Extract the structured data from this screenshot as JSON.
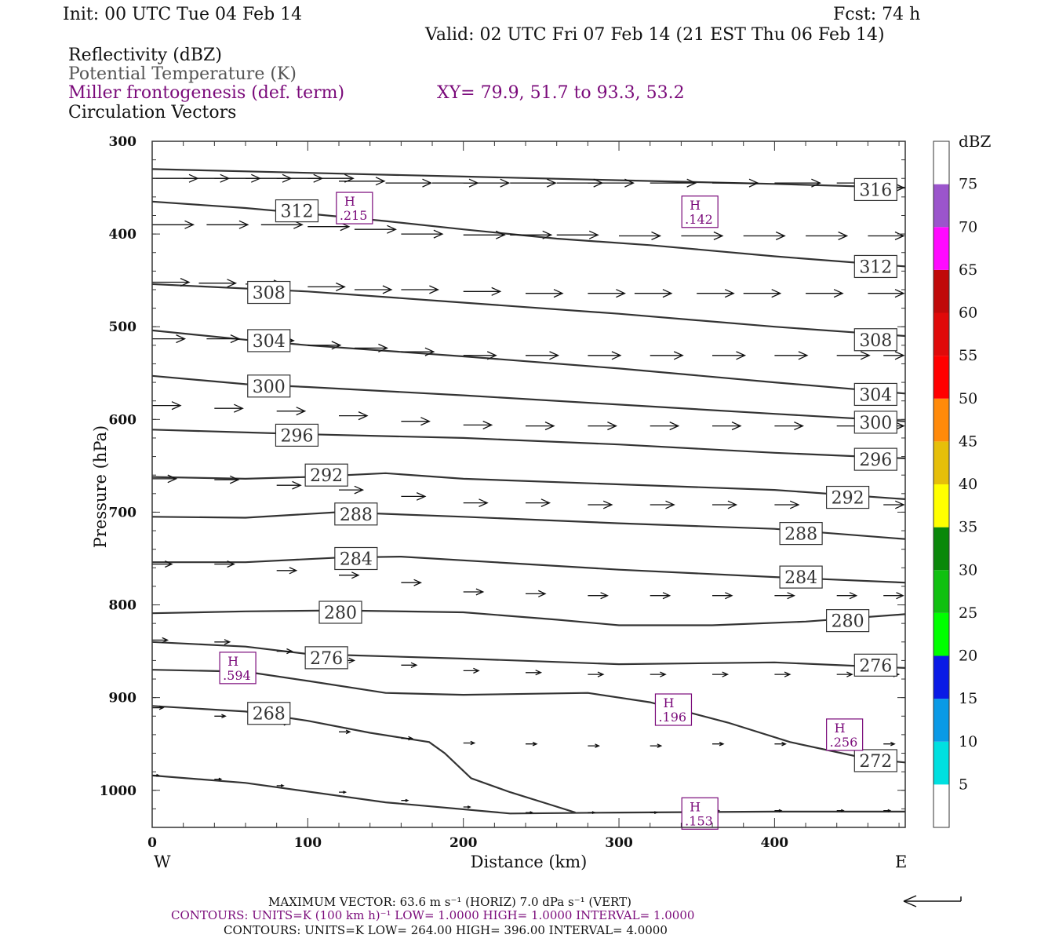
{
  "header": {
    "init": "Init: 00 UTC Tue 04 Feb 14",
    "fcst": "Fcst:   74 h",
    "valid": "Valid: 02 UTC Fri 07 Feb 14 (21 EST Thu 06 Feb 14)",
    "fields": [
      {
        "text": "Reflectivity (dBZ)",
        "color": "#111111"
      },
      {
        "text": "Potential Temperature (K)",
        "color": "#555555"
      },
      {
        "text": "Miller frontogenesis (def. term)",
        "color": "#7a0a7a"
      },
      {
        "text": "Circulation Vectors",
        "color": "#111111"
      }
    ],
    "xy": "XY=  79.9, 51.7 to  93.3, 53.2"
  },
  "colorbar": {
    "unit": "dBZ",
    "levels": [
      "5",
      "10",
      "15",
      "20",
      "25",
      "30",
      "35",
      "40",
      "45",
      "50",
      "55",
      "60",
      "65",
      "70",
      "75"
    ],
    "colors": [
      "#ffffff",
      "#00e0e0",
      "#0a9ae6",
      "#0a1ae6",
      "#00ff00",
      "#10c010",
      "#0a880a",
      "#ffff00",
      "#e6bf0a",
      "#ff8a0a",
      "#ff0000",
      "#e00a0a",
      "#c00a0a",
      "#ff0aff",
      "#9b55cc",
      "#ffffff"
    ]
  },
  "footer": {
    "vector": "MAXIMUM VECTOR:  63.6 m s⁻¹ (HORIZ)         7.0 dPa s⁻¹ (VERT)",
    "contours_fronto": "CONTOURS:  UNITS=K (100 km h)⁻¹  LOW=   1.0000       HIGH=   1.0000       INTERVAL=    1.0000",
    "contours_theta": "CONTOURS:  UNITS=K  LOW=   264.00        HIGH=   396.00        INTERVAL=    4.0000"
  },
  "chart_data": {
    "type": "cross-section",
    "xlabel": "Distance (km)",
    "ylabel": "Pressure (hPa)",
    "xlim": [
      0,
      484
    ],
    "ylim": [
      1040,
      300
    ],
    "xticks": [
      "0",
      "100",
      "200",
      "300",
      "400"
    ],
    "yticks": [
      "300",
      "400",
      "500",
      "600",
      "700",
      "800",
      "900",
      "1000"
    ],
    "x_left_label": "W",
    "x_right_label": "E",
    "theta_contours": [
      {
        "level": "316",
        "points": [
          [
            0,
            330
          ],
          [
            100,
            334
          ],
          [
            200,
            338
          ],
          [
            300,
            342
          ],
          [
            400,
            346
          ],
          [
            484,
            350
          ]
        ],
        "labels": [
          [
            465,
            352
          ]
        ]
      },
      {
        "level": "312",
        "points": [
          [
            0,
            365
          ],
          [
            60,
            372
          ],
          [
            100,
            378
          ],
          [
            150,
            386
          ],
          [
            200,
            395
          ],
          [
            260,
            405
          ],
          [
            320,
            412
          ],
          [
            400,
            424
          ],
          [
            484,
            435
          ]
        ],
        "labels": [
          [
            93,
            375
          ],
          [
            465,
            435
          ]
        ]
      },
      {
        "level": "308",
        "points": [
          [
            0,
            454
          ],
          [
            100,
            462
          ],
          [
            200,
            474
          ],
          [
            300,
            486
          ],
          [
            400,
            500
          ],
          [
            484,
            510
          ]
        ],
        "labels": [
          [
            75,
            463
          ],
          [
            465,
            514
          ]
        ]
      },
      {
        "level": "304",
        "points": [
          [
            0,
            504
          ],
          [
            60,
            514
          ],
          [
            100,
            520
          ],
          [
            200,
            532
          ],
          [
            300,
            545
          ],
          [
            400,
            560
          ],
          [
            484,
            572
          ]
        ],
        "labels": [
          [
            75,
            515
          ],
          [
            465,
            573
          ]
        ]
      },
      {
        "level": "300",
        "points": [
          [
            0,
            553
          ],
          [
            60,
            562
          ],
          [
            100,
            565
          ],
          [
            200,
            574
          ],
          [
            300,
            584
          ],
          [
            400,
            594
          ],
          [
            484,
            602
          ]
        ],
        "labels": [
          [
            75,
            564
          ],
          [
            465,
            603
          ]
        ]
      },
      {
        "level": "296",
        "points": [
          [
            0,
            611
          ],
          [
            100,
            616
          ],
          [
            200,
            620
          ],
          [
            300,
            627
          ],
          [
            400,
            636
          ],
          [
            484,
            642
          ]
        ],
        "labels": [
          [
            93,
            617
          ],
          [
            465,
            643
          ]
        ]
      },
      {
        "level": "292",
        "points": [
          [
            0,
            662
          ],
          [
            60,
            664
          ],
          [
            100,
            662
          ],
          [
            150,
            658
          ],
          [
            200,
            664
          ],
          [
            300,
            670
          ],
          [
            400,
            676
          ],
          [
            484,
            686
          ]
        ],
        "labels": [
          [
            112,
            660
          ],
          [
            447,
            684
          ]
        ]
      },
      {
        "level": "288",
        "points": [
          [
            0,
            705
          ],
          [
            60,
            706
          ],
          [
            120,
            700
          ],
          [
            200,
            705
          ],
          [
            300,
            712
          ],
          [
            400,
            718
          ],
          [
            484,
            729
          ]
        ],
        "labels": [
          [
            131,
            702
          ],
          [
            417,
            723
          ]
        ]
      },
      {
        "level": "284",
        "points": [
          [
            0,
            754
          ],
          [
            60,
            754
          ],
          [
            120,
            749
          ],
          [
            160,
            748
          ],
          [
            220,
            754
          ],
          [
            300,
            762
          ],
          [
            400,
            770
          ],
          [
            484,
            776
          ]
        ],
        "labels": [
          [
            131,
            750
          ],
          [
            417,
            770
          ]
        ]
      },
      {
        "level": "280",
        "points": [
          [
            0,
            809
          ],
          [
            60,
            807
          ],
          [
            120,
            806
          ],
          [
            200,
            808
          ],
          [
            260,
            816
          ],
          [
            300,
            822
          ],
          [
            360,
            822
          ],
          [
            420,
            818
          ],
          [
            484,
            810
          ]
        ],
        "labels": [
          [
            121,
            808
          ],
          [
            447,
            817
          ]
        ]
      },
      {
        "level": "276",
        "points": [
          [
            0,
            840
          ],
          [
            60,
            845
          ],
          [
            100,
            853
          ],
          [
            200,
            858
          ],
          [
            300,
            864
          ],
          [
            400,
            862
          ],
          [
            484,
            868
          ]
        ],
        "labels": [
          [
            112,
            857
          ],
          [
            465,
            865
          ]
        ]
      },
      {
        "level": "272",
        "points": [
          [
            0,
            870
          ],
          [
            60,
            872
          ],
          [
            100,
            882
          ],
          [
            150,
            895
          ],
          [
            200,
            897
          ],
          [
            280,
            895
          ],
          [
            320,
            905
          ],
          [
            370,
            927
          ],
          [
            410,
            948
          ],
          [
            460,
            966
          ],
          [
            484,
            970
          ]
        ],
        "labels": [
          [
            465,
            968
          ]
        ]
      },
      {
        "level": "268",
        "points": [
          [
            0,
            909
          ],
          [
            60,
            915
          ],
          [
            100,
            925
          ],
          [
            140,
            938
          ],
          [
            178,
            948
          ],
          [
            188,
            960
          ],
          [
            205,
            987
          ],
          [
            230,
            1002
          ],
          [
            255,
            1015
          ],
          [
            272,
            1024
          ]
        ],
        "labels": [
          [
            75,
            917
          ]
        ]
      },
      {
        "level": "264",
        "points": [
          [
            0,
            984
          ],
          [
            60,
            992
          ],
          [
            150,
            1013
          ],
          [
            230,
            1025
          ],
          [
            300,
            1024
          ],
          [
            400,
            1023
          ],
          [
            484,
            1023
          ]
        ],
        "labels": []
      }
    ],
    "circulation_vectors": [
      [
        [
          0,
          340
        ],
        [
          20,
          340
        ],
        [
          40,
          340
        ],
        [
          60,
          340
        ],
        [
          80,
          340
        ],
        [
          100,
          340
        ],
        [
          120,
          343
        ],
        [
          150,
          345
        ],
        [
          180,
          345
        ],
        [
          200,
          345
        ],
        [
          230,
          345
        ],
        [
          260,
          345
        ],
        [
          280,
          345
        ],
        [
          320,
          345
        ],
        [
          360,
          345
        ],
        [
          400,
          345
        ],
        [
          440,
          345
        ],
        [
          484,
          350
        ]
      ],
      [
        [
          0,
          390
        ],
        [
          35,
          390
        ],
        [
          70,
          390
        ],
        [
          100,
          392
        ],
        [
          130,
          395
        ],
        [
          160,
          400
        ],
        [
          200,
          401
        ],
        [
          230,
          401
        ],
        [
          260,
          401
        ],
        [
          300,
          402
        ],
        [
          340,
          402
        ],
        [
          380,
          402
        ],
        [
          420,
          402
        ],
        [
          460,
          402
        ]
      ],
      [
        [
          0,
          452
        ],
        [
          30,
          453
        ],
        [
          60,
          454
        ],
        [
          100,
          457
        ],
        [
          130,
          460
        ],
        [
          160,
          460
        ],
        [
          200,
          462
        ],
        [
          240,
          464
        ],
        [
          280,
          464
        ],
        [
          310,
          464
        ],
        [
          350,
          464
        ],
        [
          380,
          464
        ],
        [
          420,
          464
        ],
        [
          460,
          464
        ]
      ],
      [
        [
          0,
          513
        ],
        [
          35,
          513
        ],
        [
          70,
          515
        ],
        [
          100,
          520
        ],
        [
          130,
          523
        ],
        [
          160,
          527
        ],
        [
          200,
          531
        ],
        [
          240,
          531
        ],
        [
          280,
          531
        ],
        [
          320,
          531
        ],
        [
          360,
          531
        ],
        [
          400,
          531
        ],
        [
          440,
          531
        ],
        [
          470,
          531
        ]
      ],
      [
        [
          0,
          585
        ],
        [
          40,
          588
        ],
        [
          80,
          591
        ],
        [
          120,
          596
        ],
        [
          160,
          602
        ],
        [
          200,
          606
        ],
        [
          240,
          607
        ],
        [
          280,
          607
        ],
        [
          320,
          607
        ],
        [
          360,
          607
        ],
        [
          400,
          607
        ],
        [
          440,
          607
        ],
        [
          470,
          607
        ]
      ],
      [
        [
          0,
          664
        ],
        [
          40,
          665
        ],
        [
          80,
          671
        ],
        [
          120,
          676
        ],
        [
          160,
          683
        ],
        [
          200,
          690
        ],
        [
          240,
          690
        ],
        [
          280,
          692
        ],
        [
          320,
          692
        ],
        [
          360,
          692
        ],
        [
          400,
          692
        ],
        [
          440,
          692
        ],
        [
          470,
          692
        ]
      ],
      [
        [
          0,
          756
        ],
        [
          40,
          756
        ],
        [
          80,
          763
        ],
        [
          120,
          768
        ],
        [
          160,
          776
        ],
        [
          200,
          786
        ],
        [
          240,
          788
        ],
        [
          280,
          790
        ],
        [
          320,
          790
        ],
        [
          360,
          790
        ],
        [
          400,
          790
        ],
        [
          440,
          790
        ],
        [
          470,
          790
        ]
      ],
      [
        [
          0,
          838
        ],
        [
          40,
          840
        ],
        [
          80,
          850
        ],
        [
          120,
          860
        ],
        [
          160,
          865
        ],
        [
          200,
          871
        ],
        [
          240,
          873
        ],
        [
          280,
          875
        ],
        [
          320,
          875
        ],
        [
          360,
          875
        ],
        [
          400,
          875
        ],
        [
          440,
          875
        ],
        [
          470,
          875
        ]
      ],
      [
        [
          0,
          911
        ],
        [
          40,
          920
        ],
        [
          80,
          928
        ],
        [
          120,
          937
        ],
        [
          160,
          944
        ],
        [
          200,
          949
        ],
        [
          240,
          950
        ],
        [
          280,
          952
        ],
        [
          320,
          952
        ],
        [
          360,
          950
        ],
        [
          400,
          950
        ],
        [
          440,
          950
        ],
        [
          470,
          950
        ]
      ],
      [
        [
          0,
          984
        ],
        [
          40,
          988
        ],
        [
          80,
          995
        ],
        [
          120,
          1002
        ],
        [
          160,
          1011
        ],
        [
          200,
          1018
        ],
        [
          240,
          1024
        ],
        [
          280,
          1024
        ],
        [
          320,
          1024
        ],
        [
          360,
          1022
        ],
        [
          400,
          1022
        ],
        [
          440,
          1022
        ],
        [
          470,
          1022
        ]
      ]
    ],
    "frontogenesis_highs": [
      {
        "label": "H",
        "value": ".215",
        "x": 130,
        "p": 372
      },
      {
        "label": "H",
        "value": ".142",
        "x": 352,
        "p": 376
      },
      {
        "label": "H",
        "value": ".594",
        "x": 55,
        "p": 868
      },
      {
        "label": "H",
        "value": ".196",
        "x": 335,
        "p": 913
      },
      {
        "label": "H",
        "value": ".256",
        "x": 445,
        "p": 940
      },
      {
        "label": "H",
        "value": ".153",
        "x": 352,
        "p": 1025
      }
    ]
  }
}
